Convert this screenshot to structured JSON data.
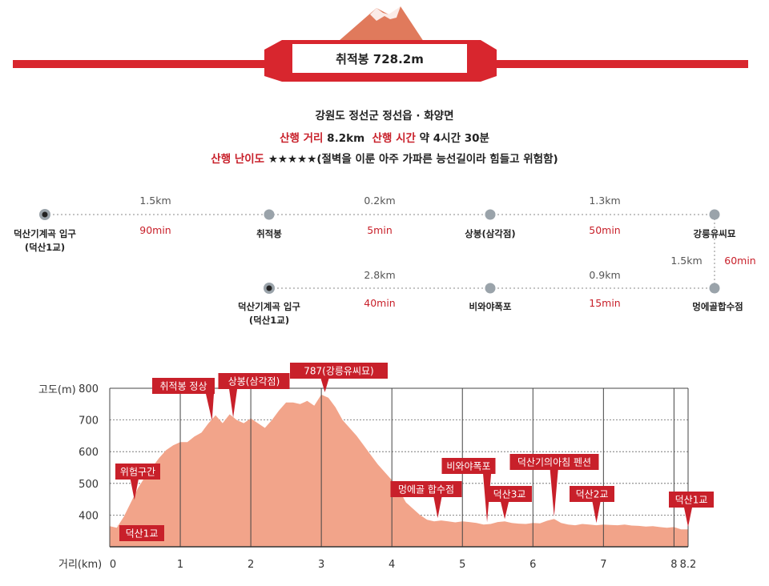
{
  "header": {
    "title": "취적봉 728.2m",
    "location": "강원도 정선군 정선읍 · 화양면",
    "distance_label": "산행 거리",
    "distance_value": "8.2km",
    "time_label": "산행 시간",
    "time_value": "약 4시간 30분",
    "difficulty_label": "산행 난이도",
    "difficulty_value": "★★★★★(절벽을 이룬 아주 가파른 능선길이라 힘들고 위험함)"
  },
  "colors": {
    "accent": "#c8202a",
    "profile_fill": "#f2a48a",
    "mountain": "#e07a5c",
    "grid": "#555555",
    "route_dot": "#9aa3aa"
  },
  "route": {
    "upper_points": [
      {
        "label": "덕산기계곡 입구",
        "sublabel": "(덕산1교)",
        "type": "start"
      },
      {
        "label": "취적봉",
        "sublabel": "",
        "type": "waypoint"
      },
      {
        "label": "상봉(삼각점)",
        "sublabel": "",
        "type": "waypoint"
      },
      {
        "label": "강릉유씨묘",
        "sublabel": "",
        "type": "waypoint"
      }
    ],
    "upper_segments": [
      {
        "distance": "1.5km",
        "time": "90min"
      },
      {
        "distance": "0.2km",
        "time": "5min"
      },
      {
        "distance": "1.3km",
        "time": "50min"
      }
    ],
    "vertical_segment": {
      "distance": "1.5km",
      "time": "60min"
    },
    "lower_points": [
      {
        "label": "덕산기계곡 입구",
        "sublabel": "(덕산1교)",
        "type": "start"
      },
      {
        "label": "비와야폭포",
        "sublabel": "",
        "type": "waypoint"
      },
      {
        "label": "멍에골합수점",
        "sublabel": "",
        "type": "waypoint"
      }
    ],
    "lower_segments": [
      {
        "distance": "2.8km",
        "time": "40min"
      },
      {
        "distance": "0.9km",
        "time": "15min"
      }
    ]
  },
  "chart_data": {
    "type": "area",
    "ylabel": "고도(m)",
    "xlabel": "거리(km)",
    "xlim": [
      0,
      8.2
    ],
    "ylim": [
      300,
      800
    ],
    "xticks": [
      "0",
      "1",
      "2",
      "3",
      "4",
      "5",
      "6",
      "7",
      "8",
      "8.2"
    ],
    "xtick_values": [
      0,
      1,
      2,
      3,
      4,
      5,
      6,
      7,
      8,
      8.2
    ],
    "yticks": [
      "800",
      "700",
      "600",
      "500",
      "400"
    ],
    "ytick_values": [
      800,
      700,
      600,
      500,
      400
    ],
    "grid": true,
    "x": [
      0,
      0.1,
      0.2,
      0.3,
      0.4,
      0.5,
      0.6,
      0.7,
      0.8,
      0.9,
      1.0,
      1.1,
      1.2,
      1.3,
      1.4,
      1.5,
      1.6,
      1.7,
      1.8,
      1.9,
      2.0,
      2.1,
      2.2,
      2.3,
      2.4,
      2.5,
      2.6,
      2.7,
      2.8,
      2.9,
      3.0,
      3.1,
      3.2,
      3.3,
      3.4,
      3.5,
      3.6,
      3.7,
      3.8,
      3.9,
      4.0,
      4.1,
      4.2,
      4.3,
      4.4,
      4.5,
      4.6,
      4.7,
      4.8,
      4.9,
      5.0,
      5.1,
      5.2,
      5.3,
      5.4,
      5.5,
      5.6,
      5.7,
      5.8,
      5.9,
      6.0,
      6.1,
      6.2,
      6.3,
      6.4,
      6.5,
      6.6,
      6.7,
      6.8,
      6.9,
      7.0,
      7.1,
      7.2,
      7.3,
      7.4,
      7.5,
      7.6,
      7.7,
      7.8,
      7.9,
      8.0,
      8.1,
      8.2
    ],
    "values": [
      365,
      360,
      395,
      440,
      485,
      520,
      550,
      580,
      605,
      620,
      630,
      630,
      648,
      660,
      690,
      715,
      690,
      718,
      700,
      690,
      705,
      690,
      675,
      700,
      730,
      755,
      755,
      750,
      760,
      745,
      780,
      770,
      740,
      700,
      675,
      650,
      620,
      590,
      560,
      535,
      510,
      480,
      440,
      420,
      400,
      385,
      380,
      383,
      380,
      377,
      380,
      378,
      375,
      370,
      372,
      378,
      380,
      375,
      373,
      372,
      375,
      374,
      382,
      388,
      375,
      370,
      368,
      372,
      370,
      368,
      370,
      369,
      368,
      370,
      367,
      366,
      364,
      365,
      362,
      360,
      362,
      355,
      355
    ],
    "annotations": [
      {
        "text": "덕산1교",
        "x": 0.08
      },
      {
        "text": "위험구간",
        "x": 0.35
      },
      {
        "text": "취적봉 정상",
        "x": 1.45
      },
      {
        "text": "상봉(삼각점)",
        "x": 1.75
      },
      {
        "text": "787(강릉유씨묘)",
        "x": 3.05
      },
      {
        "text": "멍에골 합수점",
        "x": 4.65
      },
      {
        "text": "비와야폭포",
        "x": 5.35
      },
      {
        "text": "덕산3교",
        "x": 5.6
      },
      {
        "text": "덕산기의아침 펜션",
        "x": 6.3
      },
      {
        "text": "덕산2교",
        "x": 6.9
      },
      {
        "text": "덕산1교",
        "x": 8.2
      }
    ]
  }
}
